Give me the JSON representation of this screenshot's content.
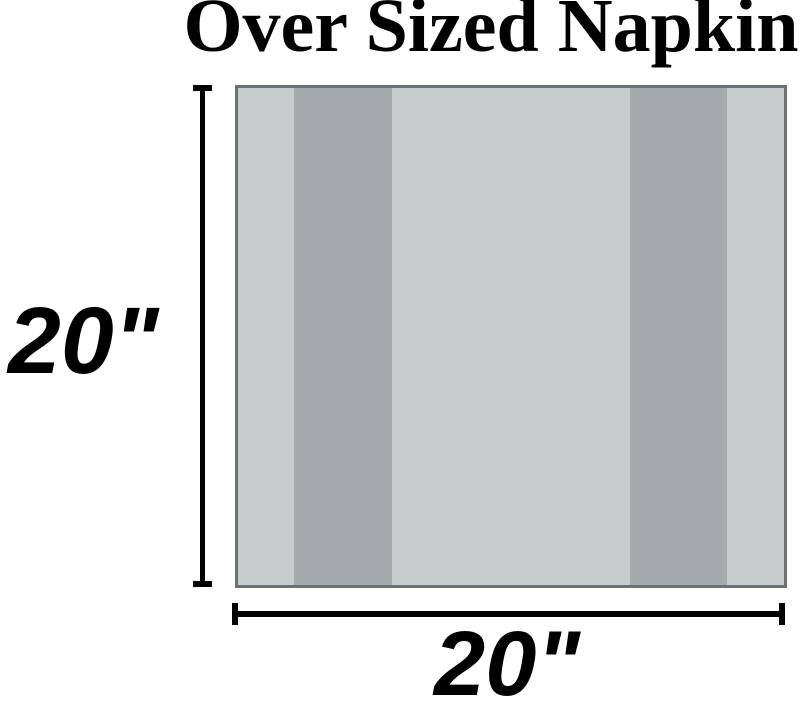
{
  "title": "Over Sized Napkin",
  "diagram": {
    "height_label": "20\"",
    "width_label": "20\""
  },
  "colors": {
    "napkin-base": "#c9cccd",
    "napkin-stripe": "#a7aaac",
    "napkin-border": "#6e7173",
    "ink": "#000000"
  }
}
